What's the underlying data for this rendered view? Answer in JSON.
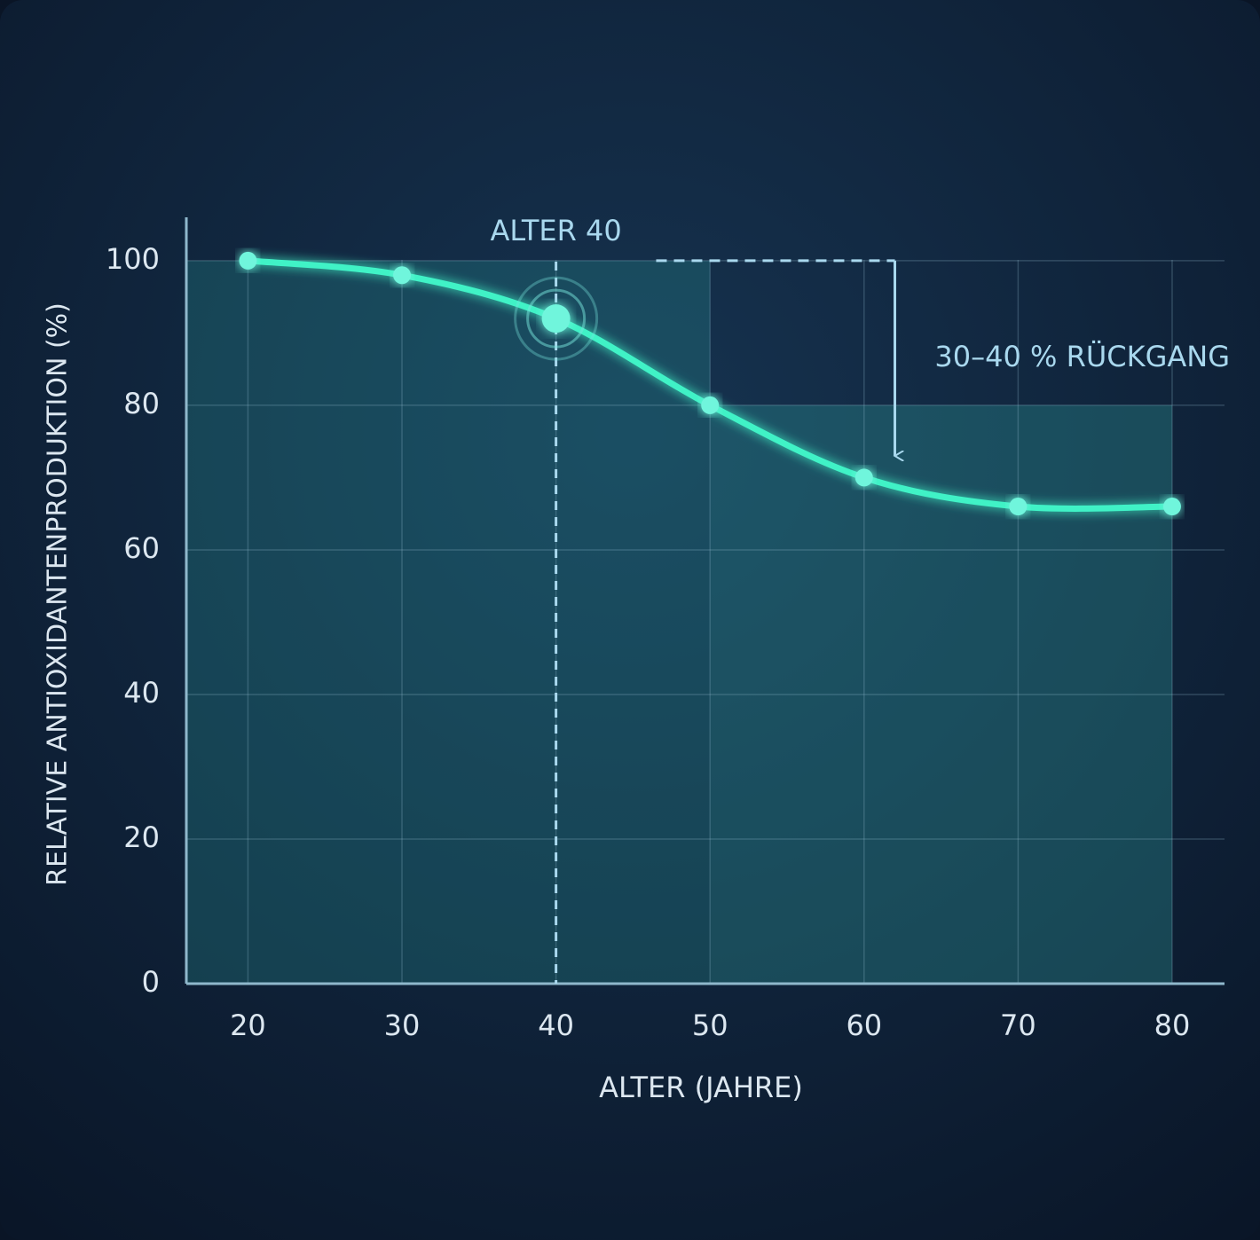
{
  "chart_data": {
    "type": "line",
    "x_label": "ALTER (JAHRE)",
    "y_label": "RELATIVE ANTIOXIDANTENPRODUKTION (%)",
    "x": [
      20,
      30,
      40,
      50,
      60,
      70,
      80
    ],
    "series": [
      {
        "color": "#3ff2c6",
        "values": [
          100,
          98,
          92,
          80,
          70,
          66,
          66
        ]
      }
    ],
    "xlim": [
      16,
      83.4
    ],
    "ylim": [
      0,
      106
    ],
    "xticks": [
      20,
      30,
      40,
      50,
      60,
      70,
      80
    ],
    "yticks": [
      0,
      20,
      40,
      60,
      80,
      100
    ],
    "grid": true,
    "shaded_bands": [
      {
        "x": [
          16,
          50
        ],
        "y": 100
      },
      {
        "x": [
          50,
          80
        ],
        "y": 80
      }
    ],
    "highlight": {
      "x": 40,
      "label": "ALTER 40"
    },
    "decline": {
      "label": "30–40 % RÜCKGANG",
      "x": 62,
      "x_start": 46.5,
      "y_from": 100,
      "y_to": 73
    }
  }
}
